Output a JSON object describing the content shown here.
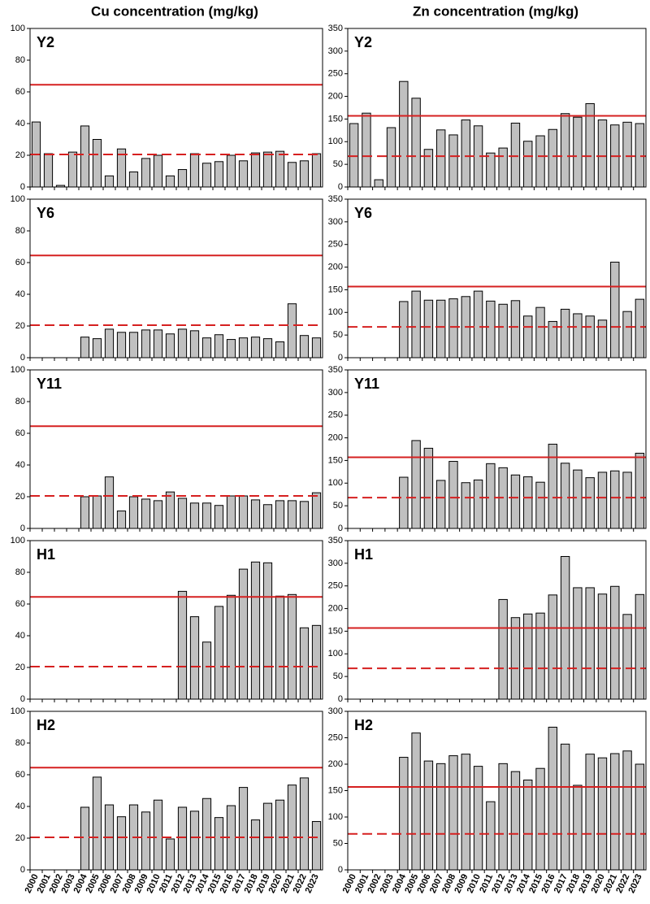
{
  "column_titles": [
    "Cu concentration (mg/kg)",
    "Zn concentration (mg/kg)"
  ],
  "chart_data": [
    {
      "type": "bar",
      "title": "Y2",
      "color": "#c0c0c0",
      "ylim": [
        0,
        100
      ],
      "yticks": [
        0,
        20,
        40,
        60,
        80,
        100
      ],
      "reference_lines": [
        {
          "value": 64.5,
          "style": "solid",
          "color": "#d62020"
        },
        {
          "value": 20.5,
          "style": "dashed",
          "color": "#d62020"
        }
      ],
      "values": [
        41,
        21,
        1,
        22,
        38.5,
        30,
        7,
        24,
        9.5,
        18,
        20,
        7,
        11,
        21,
        15,
        16,
        20,
        16.5,
        21.5,
        22,
        22.5,
        15.5,
        16.5,
        21
      ]
    },
    {
      "type": "bar",
      "title": "Y2",
      "color": "#c0c0c0",
      "ylim": [
        0,
        350
      ],
      "yticks": [
        0,
        50,
        100,
        150,
        200,
        250,
        300,
        350
      ],
      "reference_lines": [
        {
          "value": 157,
          "style": "solid",
          "color": "#d62020"
        },
        {
          "value": 68,
          "style": "dashed",
          "color": "#d62020"
        }
      ],
      "values": [
        140,
        163,
        16,
        131,
        233,
        196,
        83,
        126,
        115,
        148,
        135,
        75,
        86,
        141,
        101,
        113,
        127,
        162,
        154,
        184,
        148,
        137,
        143,
        140
      ]
    },
    {
      "type": "bar",
      "title": "Y6",
      "color": "#c0c0c0",
      "ylim": [
        0,
        100
      ],
      "yticks": [
        0,
        20,
        40,
        60,
        80,
        100
      ],
      "reference_lines": [
        {
          "value": 64.5,
          "style": "solid",
          "color": "#d62020"
        },
        {
          "value": 20.5,
          "style": "dashed",
          "color": "#d62020"
        }
      ],
      "values": [
        null,
        null,
        null,
        null,
        13,
        12,
        18,
        16,
        16,
        17.5,
        17.5,
        15,
        18,
        17,
        12.5,
        14.5,
        11.5,
        12.5,
        13,
        12,
        10,
        34,
        14,
        12.5
      ]
    },
    {
      "type": "bar",
      "title": "Y6",
      "color": "#c0c0c0",
      "ylim": [
        0,
        350
      ],
      "yticks": [
        0,
        50,
        100,
        150,
        200,
        250,
        300,
        350
      ],
      "reference_lines": [
        {
          "value": 157,
          "style": "solid",
          "color": "#d62020"
        },
        {
          "value": 68,
          "style": "dashed",
          "color": "#d62020"
        }
      ],
      "values": [
        null,
        null,
        null,
        null,
        124,
        147,
        127,
        127,
        130,
        135,
        147,
        125,
        118,
        126,
        92,
        111,
        80,
        107,
        97,
        92,
        83,
        211,
        102,
        129
      ]
    },
    {
      "type": "bar",
      "title": "Y11",
      "color": "#c0c0c0",
      "ylim": [
        0,
        100
      ],
      "yticks": [
        0,
        20,
        40,
        60,
        80,
        100
      ],
      "reference_lines": [
        {
          "value": 64.5,
          "style": "solid",
          "color": "#d62020"
        },
        {
          "value": 20.5,
          "style": "dashed",
          "color": "#d62020"
        }
      ],
      "values": [
        null,
        null,
        null,
        null,
        20,
        20.5,
        32.5,
        11,
        20,
        18.5,
        17.5,
        23,
        19,
        16,
        16,
        14.5,
        20.5,
        20.5,
        18,
        15,
        17.5,
        17.5,
        17,
        22.5
      ]
    },
    {
      "type": "bar",
      "title": "Y11",
      "color": "#c0c0c0",
      "ylim": [
        0,
        350
      ],
      "yticks": [
        0,
        50,
        100,
        150,
        200,
        250,
        300,
        350
      ],
      "reference_lines": [
        {
          "value": 157,
          "style": "solid",
          "color": "#d62020"
        },
        {
          "value": 68,
          "style": "dashed",
          "color": "#d62020"
        }
      ],
      "values": [
        null,
        null,
        null,
        null,
        113,
        194,
        177,
        106,
        148,
        101,
        107,
        143,
        134,
        118,
        114,
        102,
        186,
        144,
        129,
        112,
        124,
        127,
        124,
        166
      ]
    },
    {
      "type": "bar",
      "title": "H1",
      "color": "#c0c0c0",
      "ylim": [
        0,
        100
      ],
      "yticks": [
        0,
        20,
        40,
        60,
        80,
        100
      ],
      "reference_lines": [
        {
          "value": 64.5,
          "style": "solid",
          "color": "#d62020"
        },
        {
          "value": 20.5,
          "style": "dashed",
          "color": "#d62020"
        }
      ],
      "values": [
        null,
        null,
        null,
        null,
        null,
        null,
        null,
        null,
        null,
        null,
        null,
        null,
        68,
        52,
        36,
        58.5,
        65.5,
        82,
        86.5,
        86,
        65,
        66,
        45,
        46.5
      ]
    },
    {
      "type": "bar",
      "title": "H1",
      "color": "#c0c0c0",
      "ylim": [
        0,
        350
      ],
      "yticks": [
        0,
        50,
        100,
        150,
        200,
        250,
        300,
        350
      ],
      "reference_lines": [
        {
          "value": 157,
          "style": "solid",
          "color": "#d62020"
        },
        {
          "value": 68,
          "style": "dashed",
          "color": "#d62020"
        }
      ],
      "values": [
        null,
        null,
        null,
        null,
        null,
        null,
        null,
        null,
        null,
        null,
        null,
        null,
        220,
        180,
        188,
        190,
        230,
        315,
        246,
        246,
        232,
        249,
        187,
        231
      ]
    },
    {
      "type": "bar",
      "title": "H2",
      "color": "#c0c0c0",
      "ylim": [
        0,
        100
      ],
      "yticks": [
        0,
        20,
        40,
        60,
        80,
        100
      ],
      "reference_lines": [
        {
          "value": 64.5,
          "style": "solid",
          "color": "#d62020"
        },
        {
          "value": 20.5,
          "style": "dashed",
          "color": "#d62020"
        }
      ],
      "categories": [
        "2000",
        "2001",
        "2002",
        "2003",
        "2004",
        "2005",
        "2006",
        "2007",
        "2008",
        "2009",
        "2010",
        "2011",
        "2012",
        "2013",
        "2014",
        "2015",
        "2016",
        "2017",
        "2018",
        "2019",
        "2020",
        "2021",
        "2022",
        "2023"
      ],
      "values": [
        null,
        null,
        null,
        null,
        39.5,
        58.5,
        41,
        33.5,
        41,
        36.5,
        44,
        19.5,
        39.5,
        37,
        45,
        33,
        40.5,
        52,
        31.5,
        42,
        44,
        53.5,
        58,
        30.5
      ]
    },
    {
      "type": "bar",
      "title": "H2",
      "color": "#c0c0c0",
      "ylim": [
        0,
        300
      ],
      "yticks": [
        0,
        50,
        100,
        150,
        200,
        250,
        300
      ],
      "reference_lines": [
        {
          "value": 157,
          "style": "solid",
          "color": "#d62020"
        },
        {
          "value": 68,
          "style": "dashed",
          "color": "#d62020"
        }
      ],
      "categories": [
        "2000",
        "2001",
        "2002",
        "2003",
        "2004",
        "2005",
        "2006",
        "2007",
        "2008",
        "2009",
        "2010",
        "2011",
        "2012",
        "2013",
        "2014",
        "2015",
        "2016",
        "2017",
        "2018",
        "2019",
        "2020",
        "2021",
        "2022",
        "2023"
      ],
      "values": [
        null,
        null,
        null,
        null,
        213,
        259,
        206,
        201,
        216,
        219,
        196,
        129,
        201,
        186,
        170,
        192,
        270,
        238,
        160,
        219,
        212,
        220,
        225,
        200
      ]
    }
  ]
}
